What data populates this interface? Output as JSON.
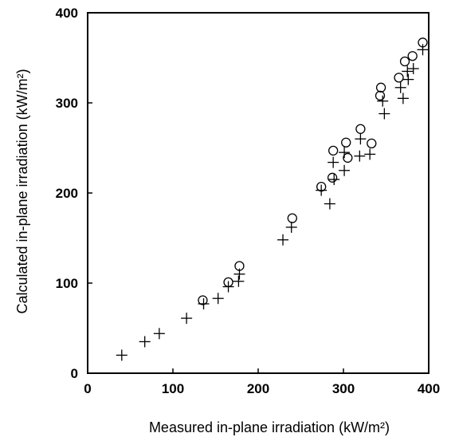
{
  "chart_data": {
    "type": "scatter",
    "title": "",
    "xlabel": "Measured in-plane irradiation (kW/m²)",
    "ylabel": "Calculated in-plane irradiation (kW/m²)",
    "xlim": [
      0,
      400
    ],
    "ylim": [
      0,
      400
    ],
    "xticks": [
      "0",
      "100",
      "200",
      "300",
      "400"
    ],
    "yticks": [
      "0",
      "100",
      "200",
      "300",
      "400"
    ],
    "grid": false,
    "legend": "none",
    "series": [
      {
        "marker": "plus",
        "points": [
          [
            40,
            20
          ],
          [
            67,
            35
          ],
          [
            84,
            44
          ],
          [
            116,
            61
          ],
          [
            136,
            77
          ],
          [
            153,
            83
          ],
          [
            165,
            96
          ],
          [
            177,
            102
          ],
          [
            178,
            110
          ],
          [
            229,
            148
          ],
          [
            239,
            162
          ],
          [
            274,
            203
          ],
          [
            284,
            188
          ],
          [
            289,
            215
          ],
          [
            288,
            234
          ],
          [
            301,
            225
          ],
          [
            301,
            245
          ],
          [
            319,
            241
          ],
          [
            320,
            260
          ],
          [
            331,
            243
          ],
          [
            346,
            302
          ],
          [
            348,
            288
          ],
          [
            367,
            317
          ],
          [
            370,
            305
          ],
          [
            375,
            335
          ],
          [
            376,
            326
          ],
          [
            382,
            338
          ],
          [
            393,
            359
          ]
        ]
      },
      {
        "marker": "circle",
        "points": [
          [
            135,
            81
          ],
          [
            165,
            101
          ],
          [
            178,
            119
          ],
          [
            240,
            172
          ],
          [
            274,
            207
          ],
          [
            287,
            217
          ],
          [
            288,
            247
          ],
          [
            303,
            256
          ],
          [
            305,
            239
          ],
          [
            320,
            271
          ],
          [
            333,
            255
          ],
          [
            344,
            317
          ],
          [
            343,
            308
          ],
          [
            365,
            328
          ],
          [
            372,
            346
          ],
          [
            381,
            352
          ],
          [
            393,
            367
          ]
        ]
      }
    ]
  }
}
